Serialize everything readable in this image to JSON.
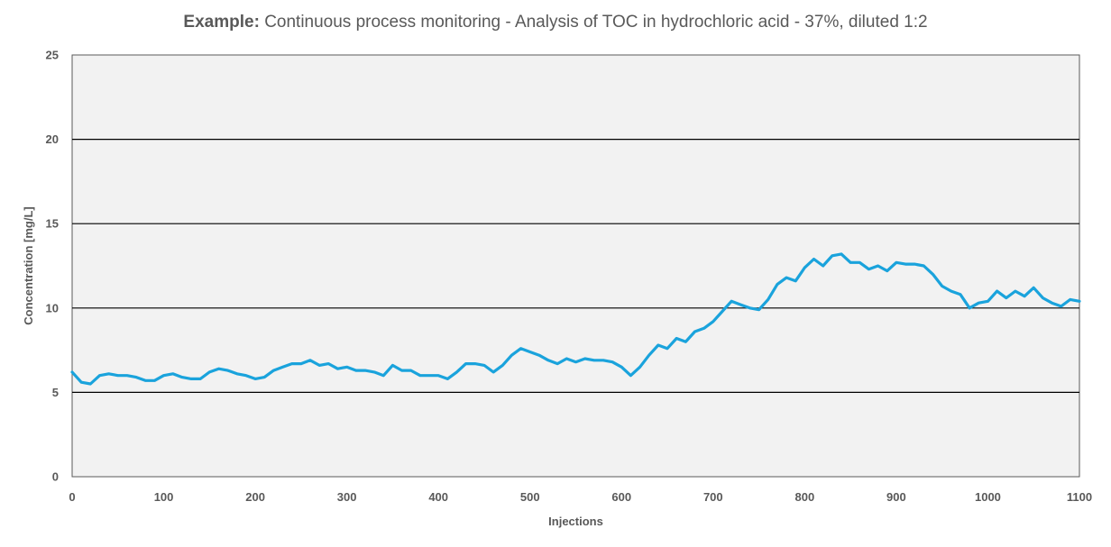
{
  "chart_data": {
    "type": "line",
    "title_prefix": "Example:",
    "title": "Continuous process monitoring - Analysis of TOC in hydrochloric acid - 37%, diluted 1:2",
    "xlabel": "Injections",
    "ylabel": "Concentration [mg/L]",
    "xlim": [
      0,
      1100
    ],
    "ylim": [
      0,
      25
    ],
    "xticks": [
      0,
      100,
      200,
      300,
      400,
      500,
      600,
      700,
      800,
      900,
      1000,
      1100
    ],
    "yticks": [
      0,
      5,
      10,
      15,
      20,
      25
    ],
    "grid": "horizontal",
    "legend": "none",
    "colors": {
      "line": "#1aa3dc",
      "plot_background": "#f2f2f2",
      "gridline": "#000000",
      "text": "#595959"
    },
    "series": [
      {
        "x": [
          0,
          10,
          20,
          30,
          40,
          50,
          60,
          70,
          80,
          90,
          100,
          110,
          120,
          130,
          140,
          150,
          160,
          170,
          180,
          190,
          200,
          210,
          220,
          230,
          240,
          250,
          260,
          270,
          280,
          290,
          300,
          310,
          320,
          330,
          340,
          350,
          360,
          370,
          380,
          390,
          400,
          410,
          420,
          430,
          440,
          450,
          460,
          470,
          480,
          490,
          500,
          510,
          520,
          530,
          540,
          550,
          560,
          570,
          580,
          590,
          600,
          610,
          620,
          630,
          640,
          650,
          660,
          670,
          680,
          690,
          700,
          710,
          720,
          730,
          740,
          750,
          760,
          770,
          780,
          790,
          800,
          810,
          820,
          830,
          840,
          850,
          860,
          870,
          880,
          890,
          900,
          910,
          920,
          930,
          940,
          950,
          960,
          970,
          980,
          990,
          1000,
          1010,
          1020,
          1030,
          1040,
          1050,
          1060,
          1070,
          1080,
          1090,
          1100
        ],
        "y": [
          6.2,
          5.6,
          5.5,
          6.0,
          6.1,
          6.0,
          6.0,
          5.9,
          5.7,
          5.7,
          6.0,
          6.1,
          5.9,
          5.8,
          5.8,
          6.2,
          6.4,
          6.3,
          6.1,
          6.0,
          5.8,
          5.9,
          6.3,
          6.5,
          6.7,
          6.7,
          6.9,
          6.6,
          6.7,
          6.4,
          6.5,
          6.3,
          6.3,
          6.2,
          6.0,
          6.6,
          6.3,
          6.3,
          6.0,
          6.0,
          6.0,
          5.8,
          6.2,
          6.7,
          6.7,
          6.6,
          6.2,
          6.6,
          7.2,
          7.6,
          7.4,
          7.2,
          6.9,
          6.7,
          7.0,
          6.8,
          7.0,
          6.9,
          6.9,
          6.8,
          6.5,
          6.0,
          6.5,
          7.2,
          7.8,
          7.6,
          8.2,
          8.0,
          8.6,
          8.8,
          9.2,
          9.8,
          10.4,
          10.2,
          10.0,
          9.9,
          10.5,
          11.4,
          11.8,
          11.6,
          12.4,
          12.9,
          12.5,
          13.1,
          13.2,
          12.7,
          12.7,
          12.3,
          12.5,
          12.2,
          12.7,
          12.6,
          12.6,
          12.5,
          12.0,
          11.3,
          11.0,
          10.8,
          10.0,
          10.3,
          10.4,
          11.0,
          10.6,
          11.0,
          10.7,
          11.2,
          10.6,
          10.3,
          10.1,
          10.5,
          10.4
        ]
      }
    ]
  }
}
